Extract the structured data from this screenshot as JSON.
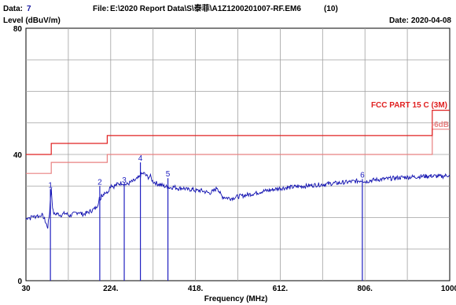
{
  "header": {
    "data_label": "Data:",
    "data_value": "7",
    "file_label": "File:",
    "file_value": "E:\\2020 Report Data\\S\\泰菲\\A1Z1200201007-RF.EM6",
    "file_suffix": "(10)",
    "date_label": "Date:",
    "date_value": "2020-04-08"
  },
  "chart_data": {
    "type": "line",
    "title": "",
    "ylabel": "Level (dBuV/m)",
    "xlabel": "Frequency (MHz)",
    "xlim": [
      30,
      1000
    ],
    "ylim": [
      0,
      80
    ],
    "x_ticks": [
      "30",
      "224.",
      "418.",
      "612.",
      "806.",
      "1000"
    ],
    "x_tick_values": [
      30,
      224,
      418,
      612,
      806,
      1000
    ],
    "y_ticks": [
      "0",
      "40",
      "80"
    ],
    "y_tick_values": [
      0,
      40,
      80
    ],
    "grid": true,
    "colors": {
      "trace": "#1010b0",
      "limit": "#e02020",
      "margin": "#e88080",
      "grid": "#a0a0a0"
    },
    "limit_line": {
      "name": "FCC PART 15 C (3M)",
      "points": [
        [
          30,
          40
        ],
        [
          88,
          40
        ],
        [
          88,
          43.5
        ],
        [
          216,
          43.5
        ],
        [
          216,
          46
        ],
        [
          960,
          46
        ],
        [
          960,
          54
        ],
        [
          1000,
          54
        ]
      ]
    },
    "margin_line": {
      "name": "-6dB",
      "points": [
        [
          30,
          34
        ],
        [
          88,
          34
        ],
        [
          88,
          37.5
        ],
        [
          216,
          37.5
        ],
        [
          216,
          40
        ],
        [
          960,
          40
        ],
        [
          960,
          48
        ],
        [
          1000,
          48
        ]
      ]
    },
    "series": [
      {
        "points": [
          [
            30,
            19.5
          ],
          [
            35,
            20.2
          ],
          [
            40,
            19.8
          ],
          [
            45,
            20.6
          ],
          [
            50,
            20.1
          ],
          [
            55,
            20.8
          ],
          [
            60,
            20.3
          ],
          [
            65,
            21.0
          ],
          [
            70,
            20.2
          ],
          [
            74,
            19.0
          ],
          [
            76,
            18.0
          ],
          [
            80,
            17.0
          ],
          [
            84,
            21.5
          ],
          [
            86,
            26.5
          ],
          [
            88,
            29.0
          ],
          [
            90,
            25.0
          ],
          [
            92,
            22.0
          ],
          [
            95,
            21.0
          ],
          [
            100,
            21.3
          ],
          [
            110,
            20.8
          ],
          [
            120,
            21.4
          ],
          [
            130,
            20.6
          ],
          [
            140,
            21.2
          ],
          [
            150,
            21.8
          ],
          [
            160,
            21.0
          ],
          [
            170,
            21.5
          ],
          [
            180,
            22.2
          ],
          [
            190,
            23.0
          ],
          [
            195,
            24.5
          ],
          [
            198,
            26.5
          ],
          [
            200,
            25.0
          ],
          [
            203,
            27.5
          ],
          [
            206,
            27.0
          ],
          [
            210,
            28.2
          ],
          [
            215,
            27.8
          ],
          [
            220,
            29.0
          ],
          [
            225,
            30.5
          ],
          [
            230,
            29.8
          ],
          [
            240,
            30.6
          ],
          [
            250,
            31.0
          ],
          [
            260,
            30.4
          ],
          [
            270,
            31.2
          ],
          [
            280,
            31.8
          ],
          [
            288,
            32.6
          ],
          [
            295,
            33.8
          ],
          [
            300,
            34.0
          ],
          [
            305,
            33.3
          ],
          [
            310,
            32.8
          ],
          [
            315,
            33.0
          ],
          [
            320,
            31.5
          ],
          [
            330,
            30.8
          ],
          [
            340,
            30.3
          ],
          [
            350,
            29.8
          ],
          [
            360,
            29.5
          ],
          [
            370,
            29.7
          ],
          [
            380,
            29.2
          ],
          [
            390,
            29.4
          ],
          [
            400,
            28.8
          ],
          [
            410,
            29.0
          ],
          [
            418,
            28.5
          ],
          [
            430,
            28.6
          ],
          [
            440,
            28.2
          ],
          [
            450,
            27.8
          ],
          [
            460,
            28.4
          ],
          [
            468,
            29.6
          ],
          [
            472,
            28.4
          ],
          [
            476,
            27.2
          ],
          [
            480,
            26.6
          ],
          [
            490,
            26.3
          ],
          [
            500,
            26.1
          ],
          [
            510,
            26.5
          ],
          [
            520,
            26.8
          ],
          [
            530,
            27.0
          ],
          [
            540,
            27.3
          ],
          [
            550,
            27.6
          ],
          [
            560,
            27.9
          ],
          [
            570,
            28.3
          ],
          [
            580,
            28.5
          ],
          [
            590,
            28.7
          ],
          [
            600,
            29.0
          ],
          [
            612,
            29.3
          ],
          [
            630,
            29.5
          ],
          [
            650,
            29.8
          ],
          [
            670,
            30.0
          ],
          [
            690,
            30.3
          ],
          [
            710,
            30.5
          ],
          [
            730,
            30.8
          ],
          [
            750,
            31.0
          ],
          [
            770,
            31.3
          ],
          [
            790,
            31.6
          ],
          [
            800,
            31.9
          ],
          [
            806,
            31.4
          ],
          [
            820,
            31.8
          ],
          [
            840,
            32.1
          ],
          [
            860,
            32.3
          ],
          [
            880,
            32.6
          ],
          [
            900,
            32.8
          ],
          [
            920,
            32.9
          ],
          [
            940,
            33.1
          ],
          [
            960,
            33.2
          ],
          [
            980,
            33.0
          ],
          [
            995,
            33.4
          ],
          [
            1000,
            33.6
          ]
        ]
      }
    ],
    "markers": [
      {
        "label": "1",
        "x": 86,
        "y": 29
      },
      {
        "label": "2",
        "x": 199,
        "y": 30
      },
      {
        "label": "3",
        "x": 255,
        "y": 30.5
      },
      {
        "label": "4",
        "x": 292,
        "y": 37.5
      },
      {
        "label": "5",
        "x": 355,
        "y": 32.5
      },
      {
        "label": "6",
        "x": 800,
        "y": 32.2
      }
    ]
  }
}
